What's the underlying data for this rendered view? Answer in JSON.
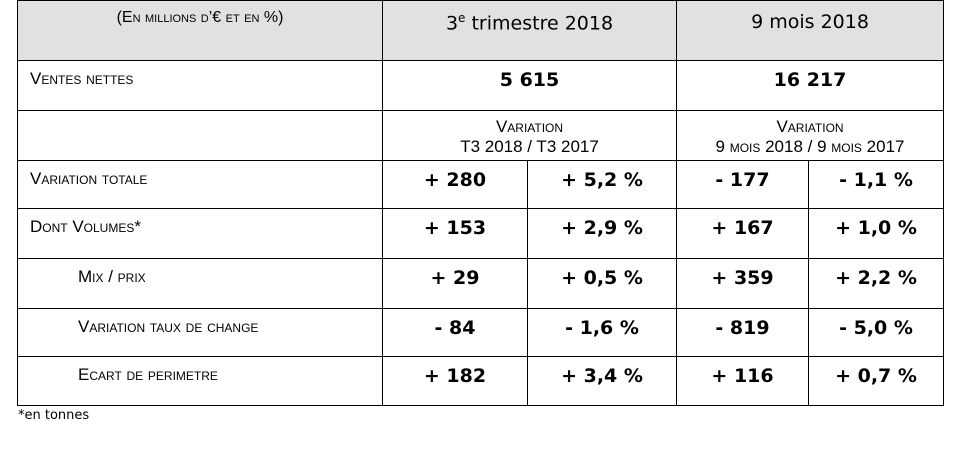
{
  "table": {
    "header": {
      "label": "(En millions d’€ et en %)",
      "q3": {
        "num": "3",
        "sup": "e",
        "rest": "trimestre 2018"
      },
      "nine": "9 mois 2018"
    },
    "sales": {
      "label": "Ventes nettes",
      "q3": "5 615",
      "nine": "16 217"
    },
    "variation_header": {
      "q3": {
        "title": "Variation",
        "period": "T3 2018 / T3 2017"
      },
      "nine": {
        "title": "Variation",
        "period": "9 mois 2018 / 9 mois 2017"
      }
    },
    "rows": [
      {
        "label": "Variation totale",
        "indent": false,
        "values": [
          "+ 280",
          "+ 5,2 %",
          "- 177",
          "- 1,1 %"
        ]
      },
      {
        "label": "Dont Volumes*",
        "indent": false,
        "values": [
          "+ 153",
          "+ 2,9 %",
          "+ 167",
          "+ 1,0 %"
        ]
      },
      {
        "label": "Mix / prix",
        "indent": true,
        "values": [
          "+ 29",
          "+ 0,5 %",
          "+ 359",
          "+ 2,2 %"
        ]
      },
      {
        "label": "Variation taux de change",
        "indent": true,
        "values": [
          "- 84",
          "- 1,6 %",
          "- 819",
          "- 5,0 %"
        ]
      },
      {
        "label": "Ecart de perimetre",
        "indent": true,
        "values": [
          "+ 182",
          "+ 3,4 %",
          "+ 116",
          "+ 0,7 %"
        ]
      }
    ],
    "footnote": "*en tonnes"
  }
}
